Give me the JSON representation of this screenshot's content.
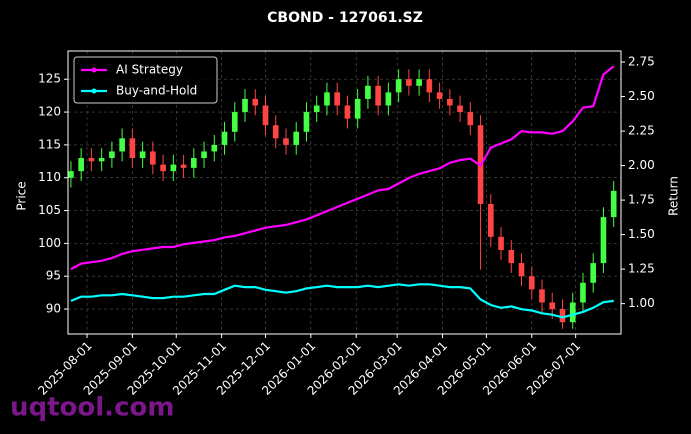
{
  "chart_data": {
    "type": "candlestick",
    "title": "CBOND - 127061.SZ",
    "y_label": "Price",
    "y2_label": "Return",
    "watermark": "uqtool.com",
    "up_color": "#44ff44",
    "down_color": "#ff4444",
    "grid": true,
    "legend": "upper left",
    "x": [
      "2025-07-21",
      "2025-07-28",
      "2025-08-04",
      "2025-08-11",
      "2025-08-18",
      "2025-08-25",
      "2025-09-01",
      "2025-09-08",
      "2025-09-15",
      "2025-09-22",
      "2025-09-29",
      "2025-10-06",
      "2025-10-13",
      "2025-10-20",
      "2025-10-27",
      "2025-11-03",
      "2025-11-10",
      "2025-11-17",
      "2025-11-24",
      "2025-12-01",
      "2025-12-08",
      "2025-12-15",
      "2025-12-22",
      "2025-12-29",
      "2026-01-05",
      "2026-01-12",
      "2026-01-19",
      "2026-01-26",
      "2026-02-02",
      "2026-02-09",
      "2026-02-16",
      "2026-02-23",
      "2026-03-02",
      "2026-03-09",
      "2026-03-16",
      "2026-03-23",
      "2026-03-30",
      "2026-04-06",
      "2026-04-13",
      "2026-04-20",
      "2026-04-27",
      "2026-05-04",
      "2026-05-11",
      "2026-05-18",
      "2026-05-25",
      "2026-06-01",
      "2026-06-08",
      "2026-06-15",
      "2026-06-22",
      "2026-06-29",
      "2026-07-06",
      "2026-07-13",
      "2026-07-20",
      "2026-07-27"
    ],
    "open": [
      110,
      111,
      113,
      112.5,
      113,
      114,
      116,
      113,
      114,
      112,
      111,
      112,
      111.5,
      113,
      114,
      115,
      117,
      120,
      122,
      121,
      118,
      116,
      115,
      117,
      120,
      121,
      123,
      121,
      119,
      122,
      124,
      121,
      123,
      125,
      124,
      125,
      123,
      122,
      121,
      120,
      118,
      106,
      101,
      99,
      97,
      95,
      93,
      91,
      90,
      88,
      91,
      94,
      97,
      104
    ],
    "high": [
      112.5,
      114.5,
      114.5,
      114.5,
      115.5,
      117.5,
      117.5,
      115.5,
      115.5,
      113.5,
      113.5,
      113.5,
      114.5,
      115.5,
      116.5,
      118.5,
      121.5,
      123.5,
      123.5,
      122.5,
      119.5,
      117.5,
      118.5,
      121.5,
      122.5,
      124.5,
      124.5,
      122.5,
      123.5,
      125.5,
      125.5,
      124.5,
      126.5,
      126.5,
      126.5,
      126.5,
      124.5,
      123.5,
      122.5,
      121.5,
      119.5,
      107.5,
      102.5,
      100.5,
      98.5,
      96.5,
      94.5,
      92.5,
      91.5,
      92.5,
      95.5,
      98.5,
      105.5,
      109.5
    ],
    "low": [
      108.5,
      109.5,
      111,
      111,
      111.5,
      112.5,
      111.5,
      111.5,
      110.5,
      109.5,
      109.5,
      110,
      110,
      111.5,
      112.5,
      113.5,
      115.5,
      118.5,
      119.5,
      116.5,
      114.5,
      113.5,
      113.5,
      115.5,
      118.5,
      119.5,
      119.5,
      117.5,
      117.5,
      120.5,
      119.5,
      119.5,
      121.5,
      122.5,
      122.5,
      121.5,
      120.5,
      119.5,
      118.5,
      116.5,
      96,
      99.5,
      97.5,
      95.5,
      93.5,
      91.5,
      89.5,
      88.5,
      87,
      87,
      89.5,
      92.5,
      95.5,
      102.5
    ],
    "close": [
      111,
      113,
      112.5,
      113,
      114,
      116,
      113,
      114,
      112,
      111,
      112,
      111.5,
      113,
      114,
      115,
      117,
      120,
      122,
      121,
      118,
      116,
      115,
      117,
      120,
      121,
      123,
      121,
      119,
      122,
      124,
      121,
      123,
      125,
      124,
      125,
      123,
      122,
      121,
      120,
      118,
      106,
      101,
      99,
      97,
      95,
      93,
      91,
      90,
      88,
      91,
      94,
      97,
      104,
      108
    ],
    "series": [
      {
        "name": "AI Strategy",
        "color": "#ff00ff",
        "axis": "y2",
        "values": [
          1.25,
          1.29,
          1.3,
          1.31,
          1.33,
          1.36,
          1.38,
          1.39,
          1.4,
          1.41,
          1.41,
          1.43,
          1.44,
          1.45,
          1.46,
          1.48,
          1.49,
          1.51,
          1.53,
          1.55,
          1.56,
          1.57,
          1.59,
          1.61,
          1.64,
          1.67,
          1.7,
          1.73,
          1.76,
          1.79,
          1.82,
          1.83,
          1.87,
          1.91,
          1.94,
          1.96,
          1.98,
          2.02,
          2.04,
          2.05,
          2.0,
          2.13,
          2.16,
          2.19,
          2.25,
          2.24,
          2.24,
          2.23,
          2.25,
          2.32,
          2.42,
          2.43,
          2.66,
          2.72
        ]
      },
      {
        "name": "Buy-and-Hold",
        "color": "#00ffff",
        "axis": "y2",
        "values": [
          1.02,
          1.05,
          1.05,
          1.06,
          1.06,
          1.07,
          1.06,
          1.05,
          1.04,
          1.04,
          1.05,
          1.05,
          1.06,
          1.07,
          1.07,
          1.1,
          1.13,
          1.12,
          1.12,
          1.1,
          1.09,
          1.08,
          1.09,
          1.11,
          1.12,
          1.13,
          1.12,
          1.12,
          1.12,
          1.13,
          1.12,
          1.13,
          1.14,
          1.13,
          1.14,
          1.14,
          1.13,
          1.12,
          1.12,
          1.11,
          1.03,
          0.99,
          0.97,
          0.98,
          0.96,
          0.95,
          0.93,
          0.92,
          0.9,
          0.92,
          0.94,
          0.97,
          1.01,
          1.02
        ]
      }
    ],
    "xlim": [
      "2025-07-19",
      "2026-08-01"
    ],
    "xticks": [
      "2025-08-01",
      "2025-09-01",
      "2025-10-01",
      "2025-11-01",
      "2025-12-01",
      "2026-01-01",
      "2026-02-01",
      "2026-03-01",
      "2026-04-01",
      "2026-05-01",
      "2026-06-01",
      "2026-07-01"
    ],
    "ylim": [
      86.2,
      129.3
    ],
    "yticks": [
      90,
      95,
      100,
      105,
      110,
      115,
      120,
      125
    ],
    "y2lim": [
      0.78,
      2.83
    ],
    "y2ticks": [
      {
        "value": 1,
        "label": "1.00"
      },
      {
        "value": 1.25,
        "label": "1.25"
      },
      {
        "value": 1.5,
        "label": "1.50"
      },
      {
        "value": 1.75,
        "label": "1.75"
      },
      {
        "value": 2,
        "label": "2.00"
      },
      {
        "value": 2.25,
        "label": "2.25"
      },
      {
        "value": 2.5,
        "label": "2.50"
      },
      {
        "value": 2.75,
        "label": "2.75"
      }
    ]
  }
}
